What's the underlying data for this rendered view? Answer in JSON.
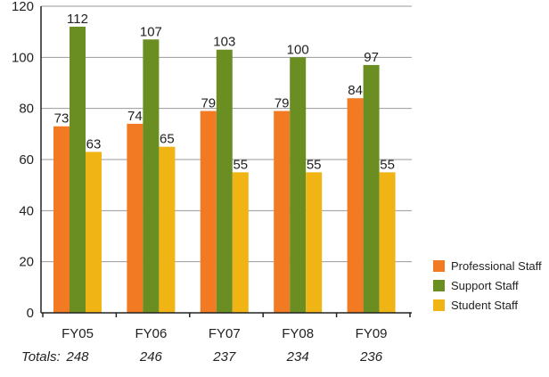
{
  "colors": {
    "professional": "#f27a22",
    "support": "#6b8e23",
    "student": "#f0b414"
  },
  "chart_data": {
    "type": "bar",
    "categories": [
      "FY05",
      "FY06",
      "FY07",
      "FY08",
      "FY09"
    ],
    "series": [
      {
        "name": "Professional Staff",
        "color_key": "professional",
        "values": [
          73,
          74,
          79,
          79,
          84
        ]
      },
      {
        "name": "Support Staff",
        "color_key": "support",
        "values": [
          112,
          107,
          103,
          100,
          97
        ]
      },
      {
        "name": "Student Staff",
        "color_key": "student",
        "values": [
          63,
          65,
          55,
          55,
          55
        ]
      }
    ],
    "ylim": [
      0,
      120
    ],
    "yticks": [
      0,
      20,
      40,
      60,
      80,
      100,
      120
    ],
    "grid": true,
    "legend_position": "right",
    "totals_label": "Totals:",
    "totals": [
      "248",
      "246",
      "237",
      "234",
      "236"
    ]
  }
}
